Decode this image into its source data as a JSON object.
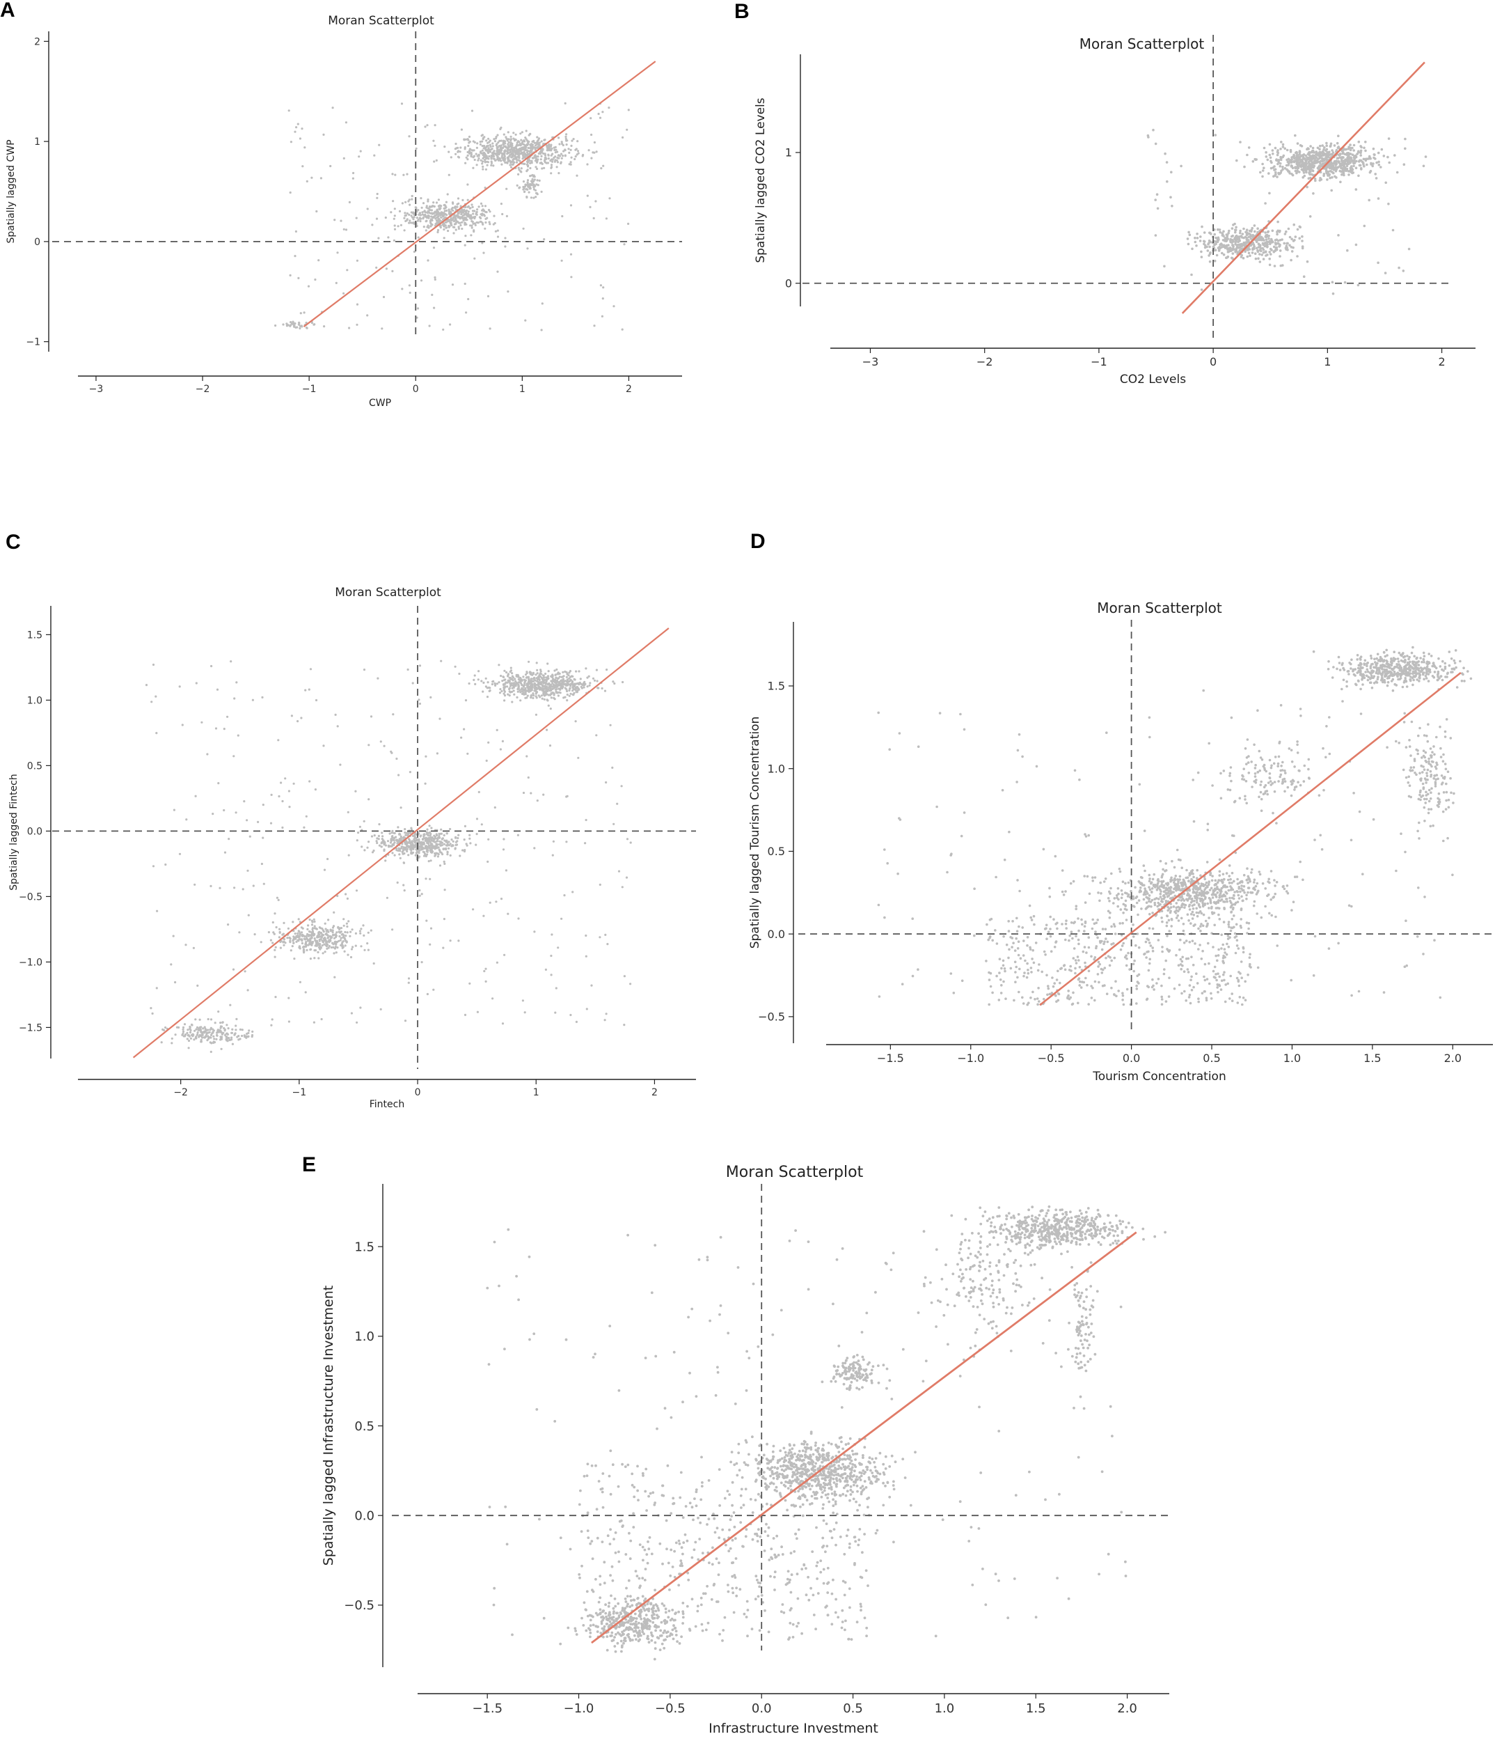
{
  "colors": {
    "points": "#bdbdbd",
    "fit_line": "#e07b67",
    "reference_lines": "#555555",
    "axes": "#222222"
  },
  "chart_data": [
    {
      "panel": "A",
      "type": "scatter",
      "title": "Moran Scatterplot",
      "xlabel": "CWP",
      "ylabel": "Spatially lagged CWP",
      "xticks": [
        -3,
        -2,
        -1,
        0,
        1,
        2
      ],
      "yticks": [
        -1,
        0,
        1,
        2
      ],
      "xlim": [
        -3.15,
        2.5
      ],
      "ylim": [
        -1.1,
        2.1
      ],
      "fit_line": {
        "x": [
          -1.05,
          2.25
        ],
        "y": [
          -0.85,
          1.8
        ],
        "slope": 0.8
      },
      "reference_lines": {
        "x": 0,
        "y": 0
      },
      "clusters": [
        {
          "cx": 0.95,
          "cy": 0.9,
          "sx": 0.45,
          "sy": 0.08,
          "n": 700,
          "shape": "gauss"
        },
        {
          "cx": 0.3,
          "cy": 0.25,
          "sx": 0.35,
          "sy": 0.07,
          "n": 450,
          "shape": "gauss"
        },
        {
          "cx": 1.08,
          "cy": 0.55,
          "sx": 0.08,
          "sy": 0.05,
          "n": 60,
          "shape": "gauss"
        },
        {
          "cx": -1.1,
          "cy": -0.83,
          "sx": 0.15,
          "sy": 0.02,
          "n": 35,
          "shape": "gauss"
        },
        {
          "x": [
            -1.2,
            2.0
          ],
          "y": [
            -0.9,
            1.4
          ],
          "n": 180,
          "shape": "uniform"
        }
      ]
    },
    {
      "panel": "B",
      "type": "scatter",
      "title": "Moran Scatterplot",
      "xlabel": "CO2 Levels",
      "ylabel": "Spatially lagged CO2 Levels",
      "xticks": [
        -3,
        -2,
        -1,
        0,
        1,
        2
      ],
      "yticks": [
        0,
        1
      ],
      "xlim": [
        -3.35,
        2.1
      ],
      "ylim": [
        -0.55,
        1.9
      ],
      "fit_line": {
        "x": [
          -0.27,
          1.85
        ],
        "y": [
          -0.23,
          1.69
        ],
        "slope": 0.9
      },
      "reference_lines": {
        "x": 0,
        "y": 0
      },
      "clusters": [
        {
          "cx": 0.95,
          "cy": 0.93,
          "sx": 0.4,
          "sy": 0.06,
          "n": 700,
          "shape": "gauss"
        },
        {
          "cx": 0.3,
          "cy": 0.31,
          "sx": 0.35,
          "sy": 0.06,
          "n": 450,
          "shape": "gauss"
        },
        {
          "x": [
            -0.6,
            1.8
          ],
          "y": [
            -0.1,
            1.2
          ],
          "n": 60,
          "shape": "uniform"
        }
      ]
    },
    {
      "panel": "C",
      "type": "scatter",
      "title": "Moran Scatterplot",
      "xlabel": "Fintech",
      "ylabel": "Spatially lagged Fintech",
      "xticks": [
        -2,
        -1,
        0,
        1,
        2
      ],
      "yticks": [
        -1.5,
        -1.0,
        -0.5,
        0.0,
        0.5,
        1.0,
        1.5
      ],
      "xlim": [
        -2.85,
        2.35
      ],
      "ylim": [
        -1.95,
        1.72
      ],
      "fit_line": {
        "x": [
          -2.4,
          2.12
        ],
        "y": [
          -1.73,
          1.55
        ],
        "slope": 0.72
      },
      "reference_lines": {
        "x": 0,
        "y": 0
      },
      "clusters": [
        {
          "cx": 1.05,
          "cy": 1.12,
          "sx": 0.35,
          "sy": 0.05,
          "n": 600,
          "shape": "gauss"
        },
        {
          "cx": 0.0,
          "cy": -0.1,
          "sx": 0.3,
          "sy": 0.05,
          "n": 500,
          "shape": "gauss"
        },
        {
          "cx": -0.85,
          "cy": -0.82,
          "sx": 0.28,
          "sy": 0.06,
          "n": 350,
          "shape": "gauss"
        },
        {
          "cx": -1.75,
          "cy": -1.55,
          "sx": 0.3,
          "sy": 0.04,
          "n": 200,
          "shape": "gauss"
        },
        {
          "x": [
            -2.3,
            1.8
          ],
          "y": [
            -1.5,
            1.3
          ],
          "n": 300,
          "shape": "uniform"
        }
      ]
    },
    {
      "panel": "D",
      "type": "scatter",
      "title": "Moran Scatterplot",
      "xlabel": "Tourism Concentration",
      "ylabel": "Spatially lagged Tourism Concentration",
      "xticks": [
        -1.5,
        -1.0,
        -0.5,
        0.0,
        0.5,
        1.0,
        1.5,
        2.0
      ],
      "yticks": [
        -0.5,
        0.0,
        0.5,
        1.0,
        1.5
      ],
      "xlim": [
        -1.9,
        2.25
      ],
      "ylim": [
        -0.69,
        1.9
      ],
      "fit_line": {
        "x": [
          -0.57,
          2.05
        ],
        "y": [
          -0.43,
          1.58
        ],
        "slope": 0.77
      },
      "reference_lines": {
        "x": 0,
        "y": 0
      },
      "clusters": [
        {
          "cx": 1.65,
          "cy": 1.6,
          "sx": 0.3,
          "sy": 0.05,
          "n": 500,
          "shape": "gauss"
        },
        {
          "cx": 0.35,
          "cy": 0.25,
          "sx": 0.45,
          "sy": 0.07,
          "n": 700,
          "shape": "gauss"
        },
        {
          "cx": 1.85,
          "cy": 0.95,
          "sx": 0.12,
          "sy": 0.15,
          "n": 150,
          "shape": "gauss"
        },
        {
          "cx": 0.85,
          "cy": 0.95,
          "sx": 0.25,
          "sy": 0.1,
          "n": 120,
          "shape": "gauss"
        },
        {
          "x": [
            -0.9,
            0.75
          ],
          "y": [
            -0.43,
            0.1
          ],
          "n": 500,
          "shape": "uniform"
        },
        {
          "x": [
            -1.6,
            2.0
          ],
          "y": [
            -0.4,
            1.5
          ],
          "n": 180,
          "shape": "uniform"
        }
      ]
    },
    {
      "panel": "E",
      "type": "scatter",
      "title": "Moran Scatterplot",
      "xlabel": "Infrastructure Investment",
      "ylabel": "Spatially lagged Infrastructure Investment",
      "xticks": [
        -1.5,
        -1.0,
        -0.5,
        0.0,
        0.5,
        1.0,
        1.5,
        2.0
      ],
      "yticks": [
        -0.5,
        0.0,
        0.5,
        1.0,
        1.5
      ],
      "xlim": [
        -1.87,
        2.23
      ],
      "ylim": [
        -0.85,
        1.85
      ],
      "fit_line": {
        "x": [
          -0.93,
          2.05
        ],
        "y": [
          -0.71,
          1.58
        ],
        "slope": 0.77
      },
      "reference_lines": {
        "x": 0,
        "y": 0
      },
      "clusters": [
        {
          "cx": 1.6,
          "cy": 1.6,
          "sx": 0.3,
          "sy": 0.05,
          "n": 500,
          "shape": "gauss"
        },
        {
          "cx": 0.3,
          "cy": 0.25,
          "sx": 0.3,
          "sy": 0.08,
          "n": 650,
          "shape": "gauss"
        },
        {
          "cx": -0.7,
          "cy": -0.6,
          "sx": 0.2,
          "sy": 0.07,
          "n": 350,
          "shape": "gauss"
        },
        {
          "cx": 0.5,
          "cy": 0.8,
          "sx": 0.12,
          "sy": 0.04,
          "n": 120,
          "shape": "gauss"
        },
        {
          "cx": 1.2,
          "cy": 1.3,
          "sx": 0.25,
          "sy": 0.15,
          "n": 150,
          "shape": "gauss"
        },
        {
          "cx": 1.75,
          "cy": 1.05,
          "sx": 0.06,
          "sy": 0.12,
          "n": 80,
          "shape": "gauss"
        },
        {
          "x": [
            -1.0,
            0.6
          ],
          "y": [
            -0.7,
            0.3
          ],
          "n": 500,
          "shape": "uniform"
        },
        {
          "x": [
            -1.5,
            2.0
          ],
          "y": [
            -0.7,
            1.6
          ],
          "n": 200,
          "shape": "uniform"
        }
      ]
    }
  ]
}
